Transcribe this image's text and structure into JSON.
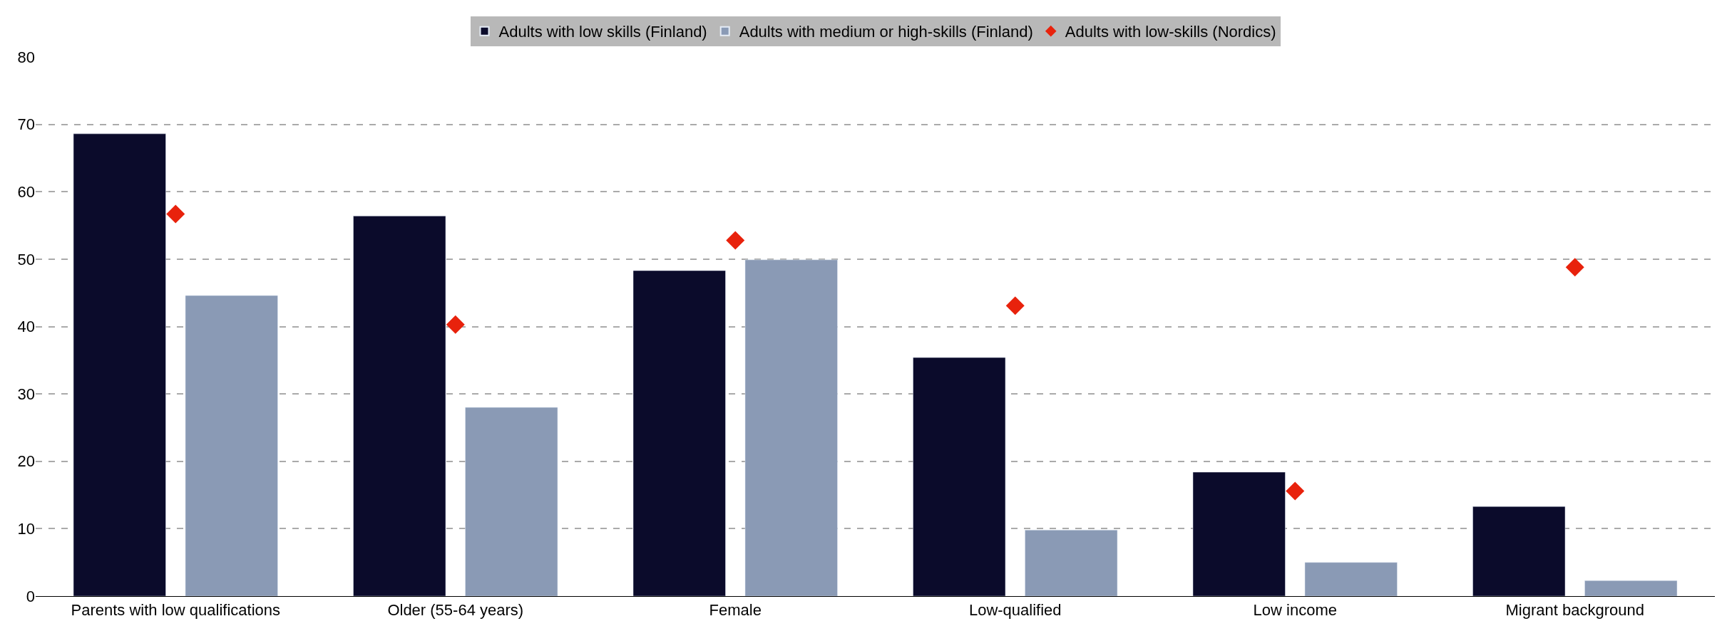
{
  "chart_data": {
    "type": "bar",
    "categories": [
      "Parents with low qualifications",
      "Older (55-64 years)",
      "Female",
      "Low-qualified",
      "Low income",
      "Migrant background"
    ],
    "series": [
      {
        "name": "Adults with low skills (Finland)",
        "color": "#0b0b2b",
        "values": [
          68.6,
          56.4,
          48.3,
          35.4,
          18.4,
          13.3
        ]
      },
      {
        "name": "Adults with medium or high-skills (Finland)",
        "color": "#8a9ab5",
        "values": [
          44.6,
          28.0,
          49.9,
          9.8,
          5.0,
          2.3
        ]
      },
      {
        "name": "Adults with low-skills (Nordics)",
        "color": "#e8220c",
        "type": "scatter",
        "marker": "diamond",
        "values": [
          56.7,
          40.3,
          52.8,
          43.1,
          15.6,
          48.8
        ]
      }
    ],
    "ylim": [
      0,
      80
    ],
    "yticks": [
      0,
      10,
      20,
      30,
      40,
      50,
      60,
      70,
      80
    ],
    "grid": "y",
    "legend": "top"
  }
}
